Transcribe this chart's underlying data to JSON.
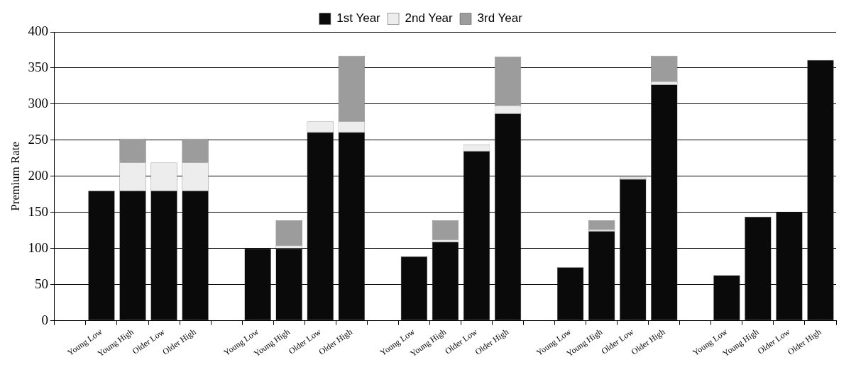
{
  "chart_data": {
    "type": "bar",
    "stacked": true,
    "ylabel": "Premium Rate",
    "categories": [
      null,
      "Young Low",
      "Young High",
      "Older Low",
      "Older High",
      null,
      "Young Low",
      "Young High",
      "Older Low",
      "Older High",
      null,
      "Young Low",
      "Young High",
      "Older Low",
      "Older High",
      null,
      "Young Low",
      "Young High",
      "Older Low",
      "Older High",
      null,
      "Young Low",
      "Young High",
      "Older Low",
      "Older High"
    ],
    "series": [
      {
        "name": "1st Year",
        "color": "#0a0a0a",
        "values": [
          null,
          180,
          180,
          180,
          180,
          null,
          100,
          100,
          261,
          261,
          null,
          89,
          109,
          235,
          287,
          null,
          74,
          124,
          196,
          327,
          null,
          63,
          144,
          151,
          361
        ]
      },
      {
        "name": "2nd Year",
        "color": "#ededed",
        "values": [
          null,
          null,
          39,
          39,
          39,
          null,
          null,
          4,
          15,
          15,
          null,
          null,
          3,
          9,
          11,
          null,
          null,
          2,
          3,
          4,
          null,
          null,
          null,
          null,
          null
        ]
      },
      {
        "name": "3rd Year",
        "color": "#9c9c9c",
        "values": [
          null,
          null,
          33,
          null,
          33,
          null,
          null,
          35,
          null,
          91,
          null,
          null,
          27,
          null,
          68,
          null,
          null,
          13,
          null,
          36,
          null,
          null,
          null,
          null,
          null
        ]
      }
    ],
    "ylim": [
      0,
      400
    ],
    "yticks": [
      0,
      50,
      100,
      150,
      200,
      250,
      300,
      350,
      400
    ],
    "grid": "y",
    "legend": "top"
  }
}
